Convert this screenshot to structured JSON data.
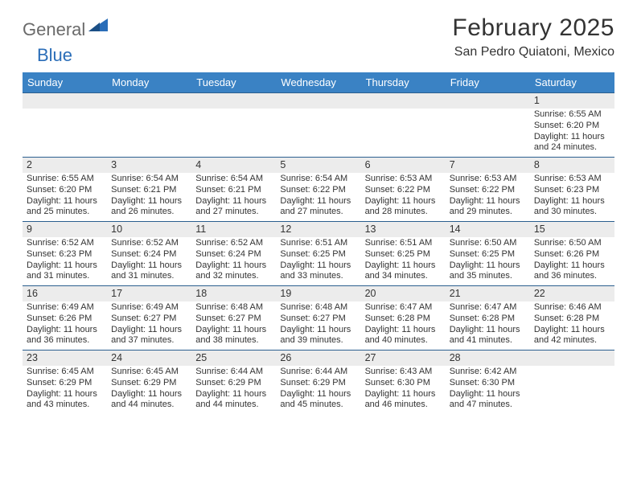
{
  "logo": {
    "general": "General",
    "blue": "Blue"
  },
  "title": "February 2025",
  "location": "San Pedro Quiatoni, Mexico",
  "colors": {
    "header_bg": "#3a82c4",
    "header_text": "#ffffff",
    "daynum_bg": "#ececec",
    "week_divider": "#2b5f8f",
    "body_text": "#333333",
    "logo_gray": "#6a6a6a",
    "logo_blue": "#2a6db8"
  },
  "days_of_week": [
    "Sunday",
    "Monday",
    "Tuesday",
    "Wednesday",
    "Thursday",
    "Friday",
    "Saturday"
  ],
  "weeks": [
    [
      {
        "num": "",
        "lines": []
      },
      {
        "num": "",
        "lines": []
      },
      {
        "num": "",
        "lines": []
      },
      {
        "num": "",
        "lines": []
      },
      {
        "num": "",
        "lines": []
      },
      {
        "num": "",
        "lines": []
      },
      {
        "num": "1",
        "lines": [
          "Sunrise: 6:55 AM",
          "Sunset: 6:20 PM",
          "Daylight: 11 hours and 24 minutes."
        ]
      }
    ],
    [
      {
        "num": "2",
        "lines": [
          "Sunrise: 6:55 AM",
          "Sunset: 6:20 PM",
          "Daylight: 11 hours and 25 minutes."
        ]
      },
      {
        "num": "3",
        "lines": [
          "Sunrise: 6:54 AM",
          "Sunset: 6:21 PM",
          "Daylight: 11 hours and 26 minutes."
        ]
      },
      {
        "num": "4",
        "lines": [
          "Sunrise: 6:54 AM",
          "Sunset: 6:21 PM",
          "Daylight: 11 hours and 27 minutes."
        ]
      },
      {
        "num": "5",
        "lines": [
          "Sunrise: 6:54 AM",
          "Sunset: 6:22 PM",
          "Daylight: 11 hours and 27 minutes."
        ]
      },
      {
        "num": "6",
        "lines": [
          "Sunrise: 6:53 AM",
          "Sunset: 6:22 PM",
          "Daylight: 11 hours and 28 minutes."
        ]
      },
      {
        "num": "7",
        "lines": [
          "Sunrise: 6:53 AM",
          "Sunset: 6:22 PM",
          "Daylight: 11 hours and 29 minutes."
        ]
      },
      {
        "num": "8",
        "lines": [
          "Sunrise: 6:53 AM",
          "Sunset: 6:23 PM",
          "Daylight: 11 hours and 30 minutes."
        ]
      }
    ],
    [
      {
        "num": "9",
        "lines": [
          "Sunrise: 6:52 AM",
          "Sunset: 6:23 PM",
          "Daylight: 11 hours and 31 minutes."
        ]
      },
      {
        "num": "10",
        "lines": [
          "Sunrise: 6:52 AM",
          "Sunset: 6:24 PM",
          "Daylight: 11 hours and 31 minutes."
        ]
      },
      {
        "num": "11",
        "lines": [
          "Sunrise: 6:52 AM",
          "Sunset: 6:24 PM",
          "Daylight: 11 hours and 32 minutes."
        ]
      },
      {
        "num": "12",
        "lines": [
          "Sunrise: 6:51 AM",
          "Sunset: 6:25 PM",
          "Daylight: 11 hours and 33 minutes."
        ]
      },
      {
        "num": "13",
        "lines": [
          "Sunrise: 6:51 AM",
          "Sunset: 6:25 PM",
          "Daylight: 11 hours and 34 minutes."
        ]
      },
      {
        "num": "14",
        "lines": [
          "Sunrise: 6:50 AM",
          "Sunset: 6:25 PM",
          "Daylight: 11 hours and 35 minutes."
        ]
      },
      {
        "num": "15",
        "lines": [
          "Sunrise: 6:50 AM",
          "Sunset: 6:26 PM",
          "Daylight: 11 hours and 36 minutes."
        ]
      }
    ],
    [
      {
        "num": "16",
        "lines": [
          "Sunrise: 6:49 AM",
          "Sunset: 6:26 PM",
          "Daylight: 11 hours and 36 minutes."
        ]
      },
      {
        "num": "17",
        "lines": [
          "Sunrise: 6:49 AM",
          "Sunset: 6:27 PM",
          "Daylight: 11 hours and 37 minutes."
        ]
      },
      {
        "num": "18",
        "lines": [
          "Sunrise: 6:48 AM",
          "Sunset: 6:27 PM",
          "Daylight: 11 hours and 38 minutes."
        ]
      },
      {
        "num": "19",
        "lines": [
          "Sunrise: 6:48 AM",
          "Sunset: 6:27 PM",
          "Daylight: 11 hours and 39 minutes."
        ]
      },
      {
        "num": "20",
        "lines": [
          "Sunrise: 6:47 AM",
          "Sunset: 6:28 PM",
          "Daylight: 11 hours and 40 minutes."
        ]
      },
      {
        "num": "21",
        "lines": [
          "Sunrise: 6:47 AM",
          "Sunset: 6:28 PM",
          "Daylight: 11 hours and 41 minutes."
        ]
      },
      {
        "num": "22",
        "lines": [
          "Sunrise: 6:46 AM",
          "Sunset: 6:28 PM",
          "Daylight: 11 hours and 42 minutes."
        ]
      }
    ],
    [
      {
        "num": "23",
        "lines": [
          "Sunrise: 6:45 AM",
          "Sunset: 6:29 PM",
          "Daylight: 11 hours and 43 minutes."
        ]
      },
      {
        "num": "24",
        "lines": [
          "Sunrise: 6:45 AM",
          "Sunset: 6:29 PM",
          "Daylight: 11 hours and 44 minutes."
        ]
      },
      {
        "num": "25",
        "lines": [
          "Sunrise: 6:44 AM",
          "Sunset: 6:29 PM",
          "Daylight: 11 hours and 44 minutes."
        ]
      },
      {
        "num": "26",
        "lines": [
          "Sunrise: 6:44 AM",
          "Sunset: 6:29 PM",
          "Daylight: 11 hours and 45 minutes."
        ]
      },
      {
        "num": "27",
        "lines": [
          "Sunrise: 6:43 AM",
          "Sunset: 6:30 PM",
          "Daylight: 11 hours and 46 minutes."
        ]
      },
      {
        "num": "28",
        "lines": [
          "Sunrise: 6:42 AM",
          "Sunset: 6:30 PM",
          "Daylight: 11 hours and 47 minutes."
        ]
      },
      {
        "num": "",
        "lines": []
      }
    ]
  ]
}
